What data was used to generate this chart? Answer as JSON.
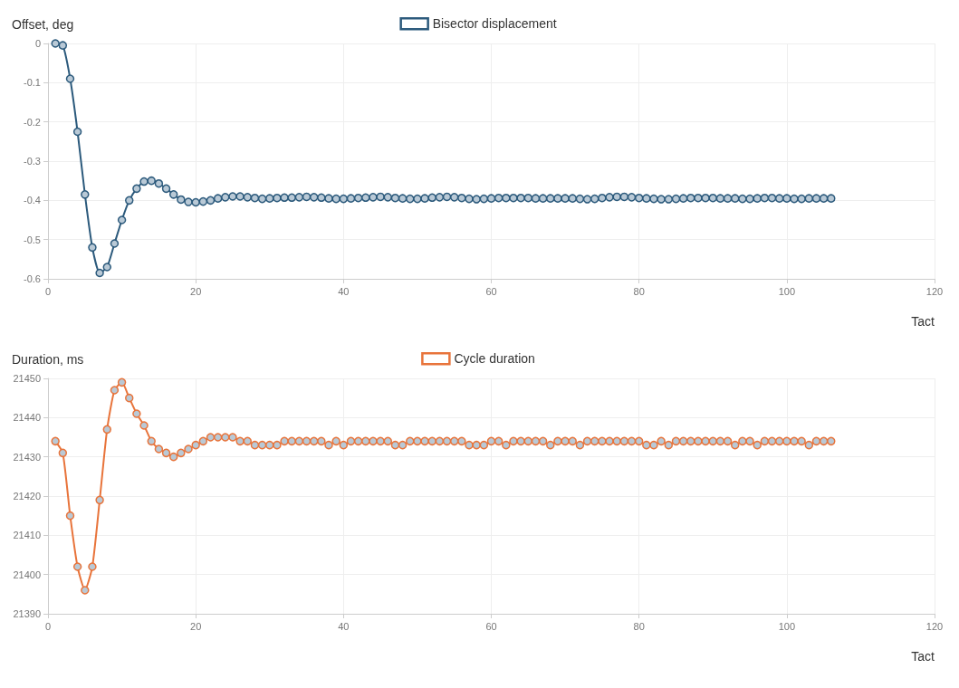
{
  "chart_data": [
    {
      "type": "line",
      "ylabel": "Offset, deg",
      "xlabel": "Tact",
      "xlim": [
        0,
        120
      ],
      "xticks": [
        0,
        20,
        40,
        60,
        80,
        100,
        120
      ],
      "ylim": [
        -0.6,
        0
      ],
      "yticks": [
        -0.6,
        -0.5,
        -0.4,
        -0.3,
        -0.2,
        -0.1,
        0
      ],
      "grid": true,
      "legend": "top",
      "marker": "circle",
      "line_style": "solid",
      "x": [
        1,
        2,
        3,
        4,
        5,
        6,
        7,
        8,
        9,
        10,
        11,
        12,
        13,
        14,
        15,
        16,
        17,
        18,
        19,
        20,
        21,
        22,
        23,
        24,
        25,
        26,
        27,
        28,
        29,
        30,
        31,
        32,
        33,
        34,
        35,
        36,
        37,
        38,
        39,
        40,
        41,
        42,
        43,
        44,
        45,
        46,
        47,
        48,
        49,
        50,
        51,
        52,
        53,
        54,
        55,
        56,
        57,
        58,
        59,
        60,
        61,
        62,
        63,
        64,
        65,
        66,
        67,
        68,
        69,
        70,
        71,
        72,
        73,
        74,
        75,
        76,
        77,
        78,
        79,
        80,
        81,
        82,
        83,
        84,
        85,
        86,
        87,
        88,
        89,
        90,
        91,
        92,
        93,
        94,
        95,
        96,
        97,
        98,
        99,
        100,
        101,
        102,
        103,
        104,
        105,
        106
      ],
      "series": [
        {
          "name": "Bisector displacement",
          "color": "#2c5a7c",
          "values": [
            0,
            -0.005,
            -0.09,
            -0.225,
            -0.385,
            -0.52,
            -0.585,
            -0.57,
            -0.51,
            -0.45,
            -0.4,
            -0.37,
            -0.352,
            -0.35,
            -0.357,
            -0.37,
            -0.385,
            -0.398,
            -0.404,
            -0.405,
            -0.403,
            -0.4,
            -0.395,
            -0.392,
            -0.39,
            -0.39,
            -0.392,
            -0.394,
            -0.396,
            -0.395,
            -0.394,
            -0.393,
            -0.393,
            -0.392,
            -0.391,
            -0.392,
            -0.393,
            -0.395,
            -0.396,
            -0.396,
            -0.395,
            -0.394,
            -0.393,
            -0.392,
            -0.391,
            -0.392,
            -0.394,
            -0.395,
            -0.396,
            -0.396,
            -0.395,
            -0.393,
            -0.392,
            -0.391,
            -0.392,
            -0.394,
            -0.396,
            -0.397,
            -0.396,
            -0.395,
            -0.394,
            -0.394,
            -0.394,
            -0.394,
            -0.394,
            -0.395,
            -0.395,
            -0.395,
            -0.395,
            -0.395,
            -0.395,
            -0.396,
            -0.397,
            -0.396,
            -0.394,
            -0.392,
            -0.391,
            -0.391,
            -0.392,
            -0.394,
            -0.395,
            -0.396,
            -0.397,
            -0.397,
            -0.396,
            -0.395,
            -0.394,
            -0.394,
            -0.394,
            -0.394,
            -0.395,
            -0.395,
            -0.395,
            -0.396,
            -0.396,
            -0.395,
            -0.394,
            -0.394,
            -0.395,
            -0.395,
            -0.396,
            -0.396,
            -0.395,
            -0.395,
            -0.395,
            -0.395
          ]
        }
      ]
    },
    {
      "type": "line",
      "ylabel": "Duration, ms",
      "xlabel": "Tact",
      "xlim": [
        0,
        120
      ],
      "xticks": [
        0,
        20,
        40,
        60,
        80,
        100,
        120
      ],
      "ylim": [
        21390,
        21450
      ],
      "yticks": [
        21390,
        21400,
        21410,
        21420,
        21430,
        21440,
        21450
      ],
      "grid": true,
      "legend": "top",
      "marker": "circle",
      "line_style": "solid",
      "x": [
        1,
        2,
        3,
        4,
        5,
        6,
        7,
        8,
        9,
        10,
        11,
        12,
        13,
        14,
        15,
        16,
        17,
        18,
        19,
        20,
        21,
        22,
        23,
        24,
        25,
        26,
        27,
        28,
        29,
        30,
        31,
        32,
        33,
        34,
        35,
        36,
        37,
        38,
        39,
        40,
        41,
        42,
        43,
        44,
        45,
        46,
        47,
        48,
        49,
        50,
        51,
        52,
        53,
        54,
        55,
        56,
        57,
        58,
        59,
        60,
        61,
        62,
        63,
        64,
        65,
        66,
        67,
        68,
        69,
        70,
        71,
        72,
        73,
        74,
        75,
        76,
        77,
        78,
        79,
        80,
        81,
        82,
        83,
        84,
        85,
        86,
        87,
        88,
        89,
        90,
        91,
        92,
        93,
        94,
        95,
        96,
        97,
        98,
        99,
        100,
        101,
        102,
        103,
        104,
        105,
        106
      ],
      "series": [
        {
          "name": "Cycle duration",
          "color": "#e8743b",
          "values": [
            21434,
            21431,
            21415,
            21402,
            21396,
            21402,
            21419,
            21437,
            21447,
            21449,
            21445,
            21441,
            21438,
            21434,
            21432,
            21431,
            21430,
            21431,
            21432,
            21433,
            21434,
            21435,
            21435,
            21435,
            21435,
            21434,
            21434,
            21433,
            21433,
            21433,
            21433,
            21434,
            21434,
            21434,
            21434,
            21434,
            21434,
            21433,
            21434,
            21433,
            21434,
            21434,
            21434,
            21434,
            21434,
            21434,
            21433,
            21433,
            21434,
            21434,
            21434,
            21434,
            21434,
            21434,
            21434,
            21434,
            21433,
            21433,
            21433,
            21434,
            21434,
            21433,
            21434,
            21434,
            21434,
            21434,
            21434,
            21433,
            21434,
            21434,
            21434,
            21433,
            21434,
            21434,
            21434,
            21434,
            21434,
            21434,
            21434,
            21434,
            21433,
            21433,
            21434,
            21433,
            21434,
            21434,
            21434,
            21434,
            21434,
            21434,
            21434,
            21434,
            21433,
            21434,
            21434,
            21433,
            21434,
            21434,
            21434,
            21434,
            21434,
            21434,
            21433,
            21434,
            21434,
            21434
          ]
        }
      ]
    }
  ]
}
